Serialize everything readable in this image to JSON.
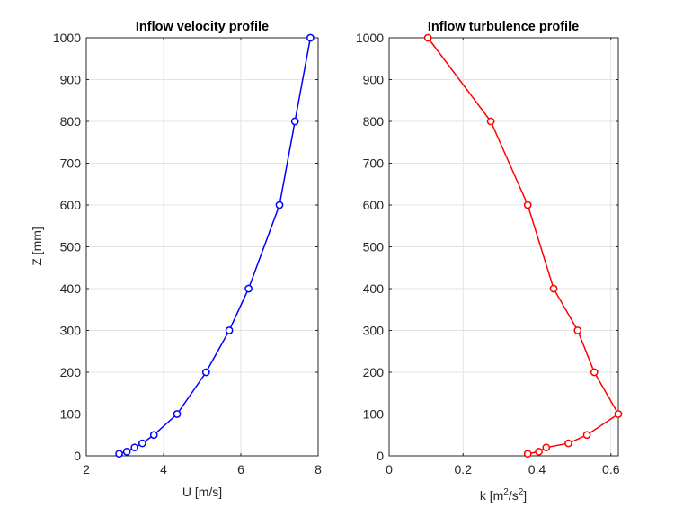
{
  "chart_data": [
    {
      "type": "line",
      "title": "Inflow velocity profile",
      "xlabel": "U [m/s]",
      "ylabel": "Z [mm]",
      "xlim": [
        2,
        8
      ],
      "ylim": [
        0,
        1000
      ],
      "xticks": [
        "2",
        "4",
        "6",
        "8"
      ],
      "yticks": [
        "0",
        "100",
        "200",
        "300",
        "400",
        "500",
        "600",
        "700",
        "800",
        "900",
        "1000"
      ],
      "grid": true,
      "color": "#0000ff",
      "marker": "circle",
      "series": [
        {
          "x": [
            2.85,
            3.05,
            3.25,
            3.45,
            3.75,
            4.35,
            5.1,
            5.7,
            6.2,
            7.0,
            7.4,
            7.8
          ],
          "y": [
            5,
            10,
            20,
            30,
            50,
            100,
            200,
            300,
            400,
            600,
            800,
            1000
          ]
        }
      ]
    },
    {
      "type": "line",
      "title": "Inflow turbulence profile",
      "xlabel_base": "k [m",
      "xlabel_sup1": "2",
      "xlabel_mid": "/s",
      "xlabel_sup2": "2",
      "xlabel_end": "]",
      "xlim": [
        0,
        0.62
      ],
      "ylim": [
        0,
        1000
      ],
      "xticks": [
        "0",
        "0.2",
        "0.4",
        "0.6"
      ],
      "yticks": [
        "0",
        "100",
        "200",
        "300",
        "400",
        "500",
        "600",
        "700",
        "800",
        "900",
        "1000"
      ],
      "grid": true,
      "color": "#ff0000",
      "marker": "circle",
      "series": [
        {
          "x": [
            0.375,
            0.405,
            0.425,
            0.485,
            0.535,
            0.62,
            0.555,
            0.51,
            0.445,
            0.375,
            0.275,
            0.105
          ],
          "y": [
            5,
            10,
            20,
            30,
            50,
            100,
            200,
            300,
            400,
            600,
            800,
            1000
          ]
        }
      ]
    }
  ]
}
